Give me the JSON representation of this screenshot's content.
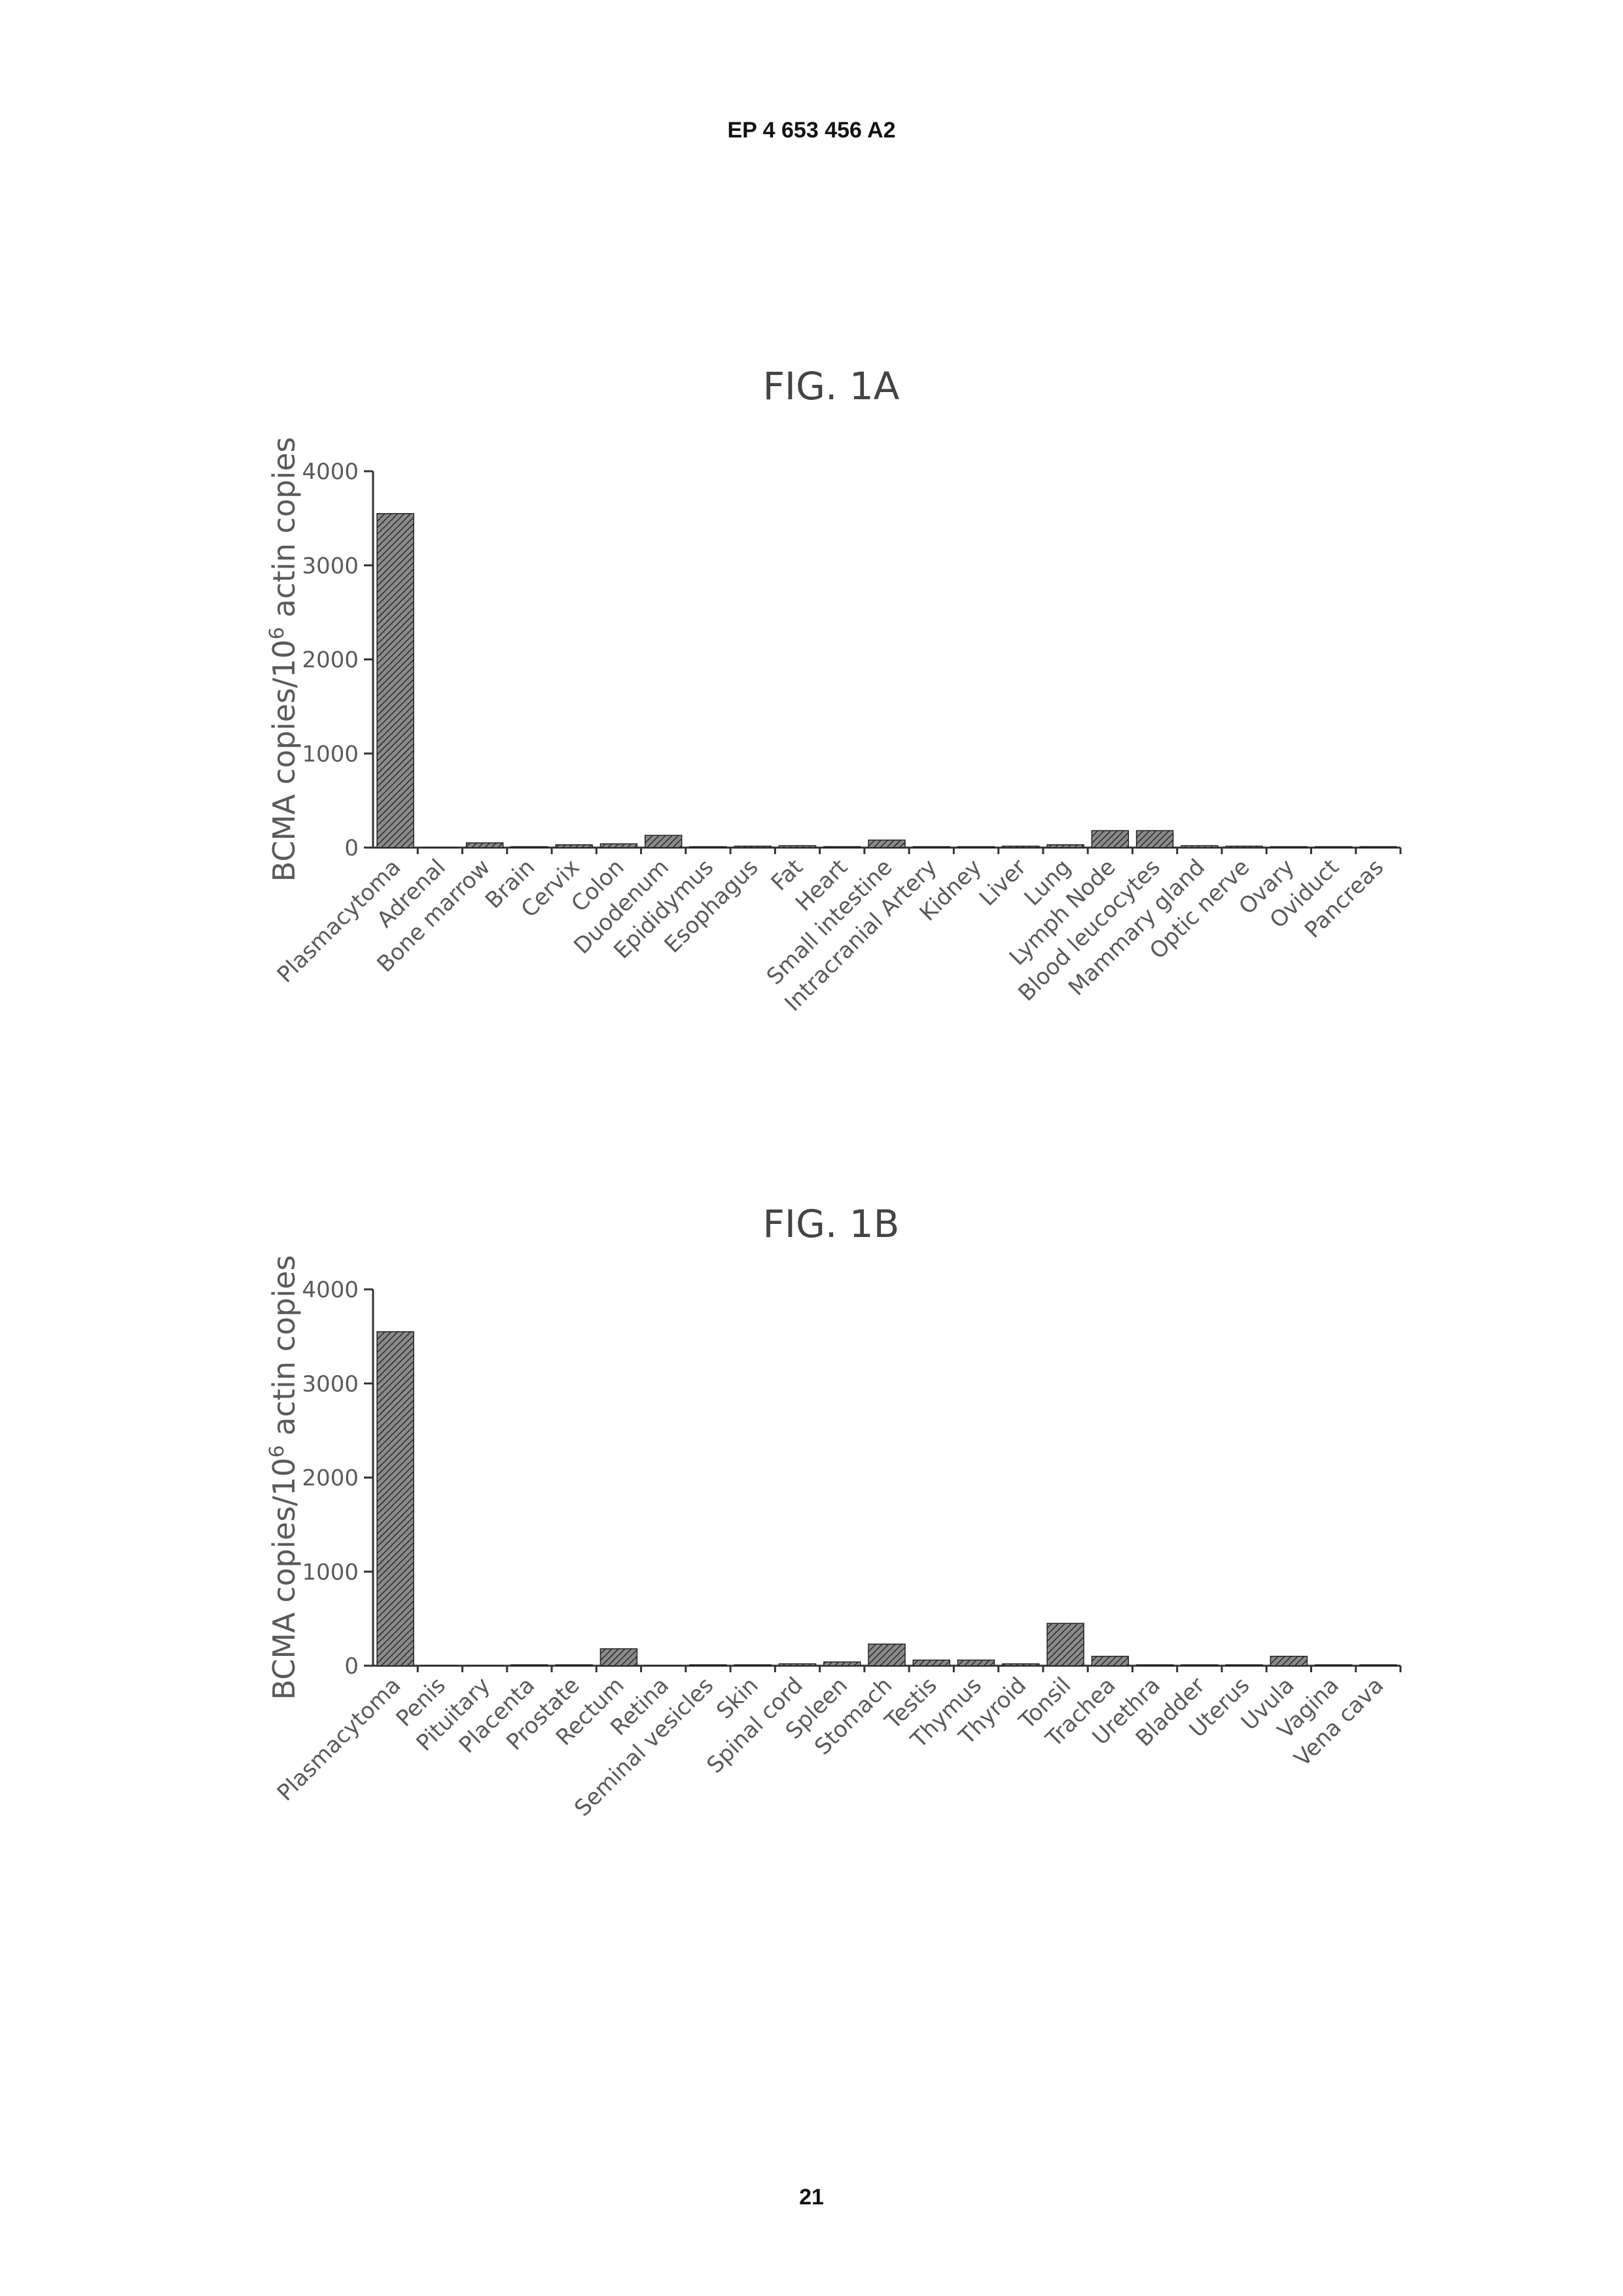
{
  "header": {
    "text": "EP 4 653 456 A2"
  },
  "footer": {
    "page_number": "21"
  },
  "chart_data": [
    {
      "type": "bar",
      "title": "FIG. 1A",
      "ylabel": "BCMA copies/10^6 actin copies",
      "ylim": [
        0,
        4000
      ],
      "yticks": [
        0,
        1000,
        2000,
        3000,
        4000
      ],
      "categories": [
        "Plasmacytoma",
        "Adrenal",
        "Bone marrow",
        "Brain",
        "Cervix",
        "Colon",
        "Duodenum",
        "Epididymus",
        "Esophagus",
        "Fat",
        "Heart",
        "Small intestine",
        "Intracranial Artery",
        "Kidney",
        "Liver",
        "Lung",
        "Lymph Node",
        "Blood leucocytes",
        "Mammary gland",
        "Optic nerve",
        "Ovary",
        "Oviduct",
        "Pancreas"
      ],
      "values": [
        3550,
        5,
        50,
        10,
        30,
        40,
        130,
        10,
        15,
        20,
        10,
        80,
        10,
        10,
        15,
        30,
        180,
        180,
        20,
        15,
        10,
        10,
        10
      ],
      "bar_color": "#555555"
    },
    {
      "type": "bar",
      "title": "FIG. 1B",
      "ylabel": "BCMA copies/10^6 actin copies",
      "ylim": [
        0,
        4000
      ],
      "yticks": [
        0,
        1000,
        2000,
        3000,
        4000
      ],
      "categories": [
        "Plasmacytoma",
        "Penis",
        "Pituitary",
        "Placenta",
        "Prostate",
        "Rectum",
        "Retina",
        "Seminal vesicles",
        "Skin",
        "Spinal cord",
        "Spleen",
        "Stomach",
        "Testis",
        "Thymus",
        "Thyroid",
        "Tonsil",
        "Trachea",
        "Urethra",
        "Bladder",
        "Uterus",
        "Uvula",
        "Vagina",
        "Vena cava"
      ],
      "values": [
        3550,
        5,
        5,
        10,
        10,
        180,
        5,
        10,
        10,
        20,
        40,
        230,
        60,
        60,
        20,
        450,
        100,
        10,
        10,
        10,
        100,
        10,
        10
      ],
      "bar_color": "#555555"
    }
  ]
}
